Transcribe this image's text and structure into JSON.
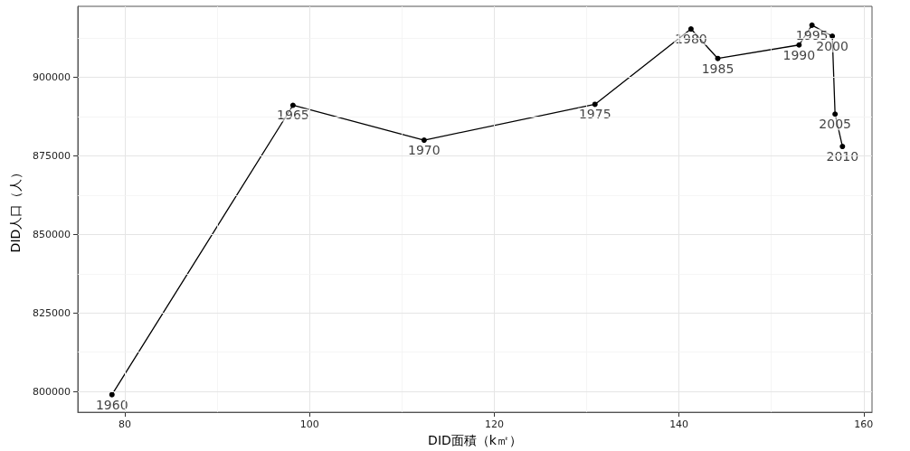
{
  "chart_data": {
    "type": "line",
    "xlabel": "DID面積（k㎡）",
    "ylabel": "DID人口（人）",
    "x": [
      78.6,
      98.2,
      112.4,
      130.9,
      141.3,
      144.2,
      153.0,
      154.4,
      156.6,
      156.9,
      157.7
    ],
    "series": [
      {
        "color": "#000000",
        "values": [
          799000,
          891100,
          880000,
          891400,
          915400,
          906000,
          910300,
          916600,
          913100,
          888300,
          878000
        ]
      }
    ],
    "marker": "circle",
    "annotations": [
      {
        "text": "1960",
        "x": 78.6,
        "y": 799000
      },
      {
        "text": "1965",
        "x": 98.2,
        "y": 891100
      },
      {
        "text": "1970",
        "x": 112.4,
        "y": 880000
      },
      {
        "text": "1975",
        "x": 130.9,
        "y": 891400
      },
      {
        "text": "1980",
        "x": 141.3,
        "y": 915400
      },
      {
        "text": "1985",
        "x": 144.2,
        "y": 906000
      },
      {
        "text": "1990",
        "x": 153.0,
        "y": 910300
      },
      {
        "text": "1995",
        "x": 154.4,
        "y": 916600
      },
      {
        "text": "2000",
        "x": 156.6,
        "y": 913100
      },
      {
        "text": "2005",
        "x": 156.9,
        "y": 888300
      },
      {
        "text": "2010",
        "x": 157.7,
        "y": 878000
      }
    ],
    "xlim": [
      74.9,
      160.9
    ],
    "xticks": [
      80,
      100,
      120,
      140,
      160
    ],
    "ylim": [
      793400,
      922600
    ],
    "yticks": [
      800000,
      825000,
      850000,
      875000,
      900000
    ],
    "grid": true
  }
}
